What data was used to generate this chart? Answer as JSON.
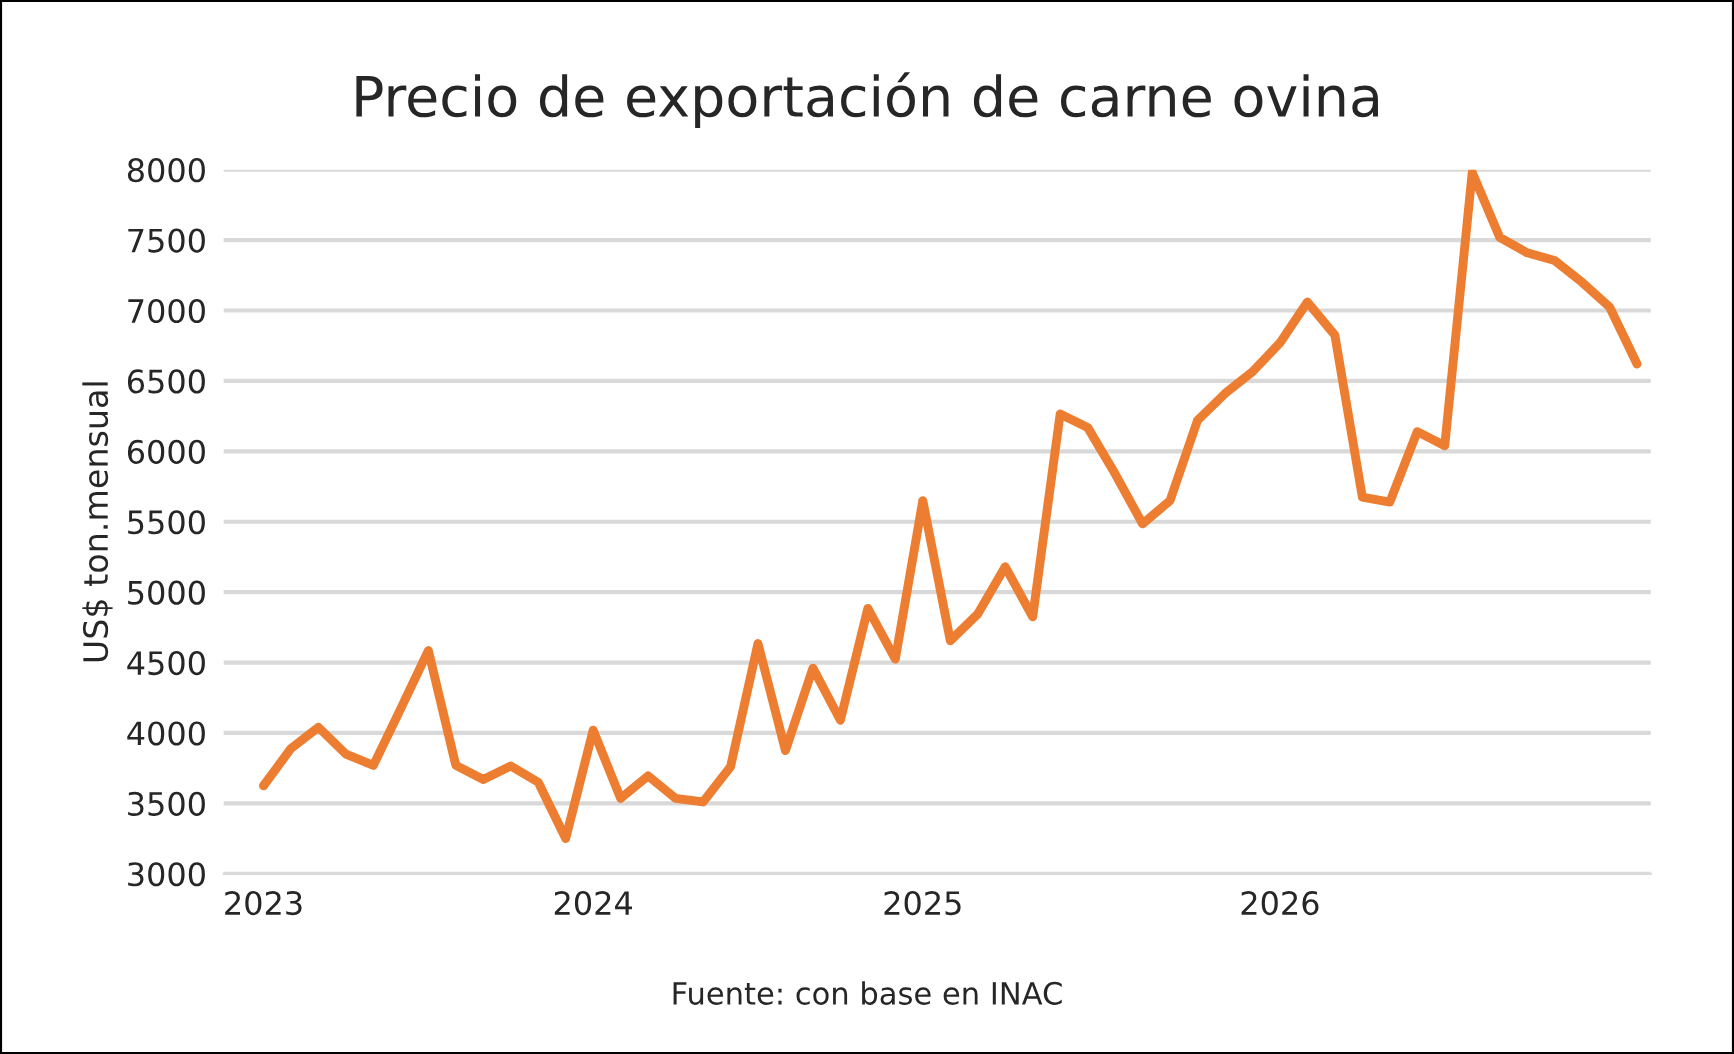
{
  "chart_data": {
    "type": "line",
    "title": "Precio de exportación de carne ovina",
    "ylabel": "US$ ton.mensual",
    "categories": [
      "2023",
      null,
      null,
      null,
      null,
      null,
      null,
      null,
      null,
      null,
      null,
      null,
      "2024",
      null,
      null,
      null,
      null,
      null,
      null,
      null,
      null,
      null,
      null,
      null,
      "2025",
      null,
      null,
      null,
      null,
      null,
      null,
      null,
      null,
      null,
      null,
      null,
      null,
      "2026",
      null,
      null,
      null,
      null,
      null,
      null,
      null,
      null,
      null,
      null,
      null,
      null,
      null
    ],
    "series": [
      {
        "color": "#ed7d31",
        "values": [
          3625,
          3890,
          4040,
          3850,
          3770,
          4175,
          4585,
          3770,
          3670,
          3765,
          3650,
          3250,
          4020,
          3535,
          3695,
          3535,
          3510,
          3760,
          4635,
          3875,
          4460,
          4090,
          4885,
          4525,
          5650,
          4655,
          4845,
          5180,
          4825,
          6265,
          6170,
          5840,
          5485,
          5650,
          6220,
          6410,
          6565,
          6770,
          7060,
          6825,
          5675,
          5640,
          6140,
          6040,
          7980,
          7520,
          7410,
          7355,
          7200,
          7025,
          6620
        ]
      }
    ],
    "ylim": [
      3000,
      8000
    ],
    "yticks": [
      3000,
      3500,
      4000,
      4500,
      5000,
      5500,
      6000,
      6500,
      7000,
      7500,
      8000
    ],
    "grid": "y",
    "marker": "none",
    "line_style": "solid",
    "annotations": [
      "Fuente: con base en INAC"
    ]
  }
}
